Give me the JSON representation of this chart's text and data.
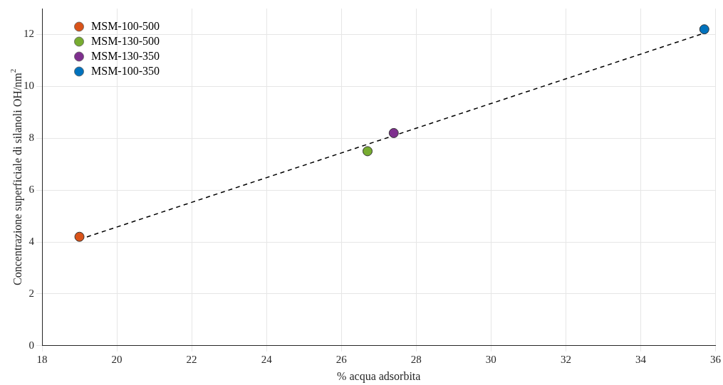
{
  "chart_data": {
    "type": "scatter",
    "xlabel": "% acqua adsorbita",
    "ylabel": "Concentrazione superficiale di silanoli OH/nm$^{2}$",
    "xlim": [
      18,
      36
    ],
    "xticks": [
      18,
      20,
      22,
      24,
      26,
      28,
      30,
      32,
      34,
      36
    ],
    "ylim": [
      0,
      13
    ],
    "yticks": [
      0,
      2,
      4,
      6,
      8,
      10,
      12
    ],
    "grid": true,
    "legend": "top left",
    "marker": "circle",
    "series": [
      {
        "name": "MSM-100-500",
        "color": "#d95319",
        "x": [
          19
        ],
        "values": [
          4.2
        ]
      },
      {
        "name": "MSM-130-500",
        "color": "#77ac30",
        "x": [
          26.7
        ],
        "values": [
          7.5
        ]
      },
      {
        "name": "MSM-130-350",
        "color": "#7e2f8e",
        "x": [
          27.4
        ],
        "values": [
          8.2
        ]
      },
      {
        "name": "MSM-100-350",
        "color": "#0072bd",
        "x": [
          35.7
        ],
        "values": [
          12.2
        ]
      },
      {
        "type": "line",
        "color": "#000000",
        "line_style": "dashed",
        "marker": "none",
        "x": [
          19,
          35.8
        ],
        "values": [
          4.1,
          12.1
        ]
      }
    ]
  }
}
